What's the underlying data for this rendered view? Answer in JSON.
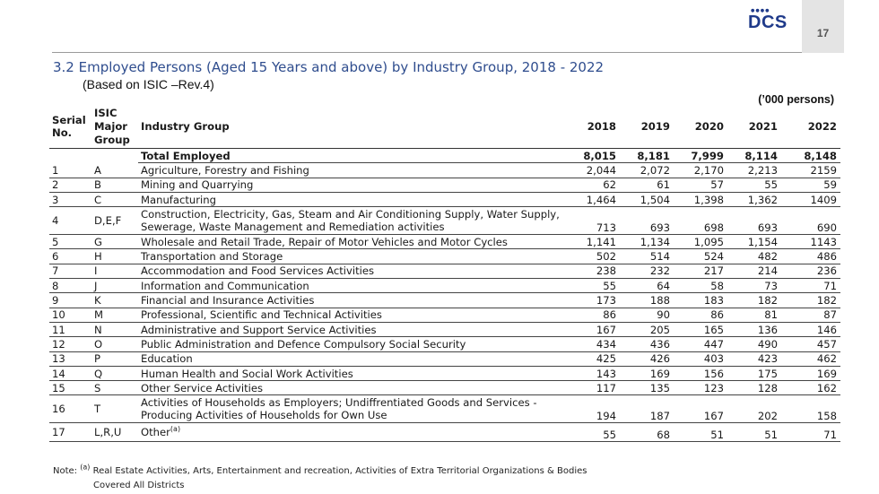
{
  "header": {
    "page_number": "17",
    "logo_text": "DCS"
  },
  "title": "3.2 Employed Persons (Aged 15 Years and above) by Industry Group, 2018 - 2022",
  "subtitle": "(Based on ISIC –Rev.4)",
  "units": "(’000 persons)",
  "table": {
    "headers": {
      "serial": "Serial No.",
      "isic": "ISIC Major Group",
      "industry": "Industry Group",
      "years": [
        "2018",
        "2019",
        "2020",
        "2021",
        "2022"
      ]
    },
    "total": {
      "label": "Total Employed",
      "values": [
        "8,015",
        "8,181",
        "7,999",
        "8,114",
        "8,148"
      ]
    },
    "rows": [
      {
        "serial": "1",
        "isic": "A",
        "industry": "Agriculture, Forestry and Fishing",
        "values": [
          "2,044",
          "2,072",
          "2,170",
          "2,213",
          "2159"
        ]
      },
      {
        "serial": "2",
        "isic": "B",
        "industry": "Mining and Quarrying",
        "values": [
          "62",
          "61",
          "57",
          "55",
          "59"
        ]
      },
      {
        "serial": "3",
        "isic": "C",
        "industry": "Manufacturing",
        "values": [
          "1,464",
          "1,504",
          "1,398",
          "1,362",
          "1409"
        ]
      },
      {
        "serial": "4",
        "isic": "D,E,F",
        "industry": "Construction, Electricity, Gas, Steam and Air Conditioning Supply, Water Supply, Sewerage, Waste Management and Remediation activities",
        "values": [
          "713",
          "693",
          "698",
          "693",
          "690"
        ]
      },
      {
        "serial": "5",
        "isic": "G",
        "industry": "Wholesale and Retail Trade, Repair of Motor Vehicles and Motor Cycles",
        "values": [
          "1,141",
          "1,134",
          "1,095",
          "1,154",
          "1143"
        ]
      },
      {
        "serial": "6",
        "isic": "H",
        "industry": "Transportation and Storage",
        "values": [
          "502",
          "514",
          "524",
          "482",
          "486"
        ]
      },
      {
        "serial": "7",
        "isic": "I",
        "industry": "Accommodation and Food Services Activities",
        "values": [
          "238",
          "232",
          "217",
          "214",
          "236"
        ]
      },
      {
        "serial": "8",
        "isic": "J",
        "industry": "Information and Communication",
        "values": [
          "55",
          "64",
          "58",
          "73",
          "71"
        ]
      },
      {
        "serial": "9",
        "isic": "K",
        "industry": "Financial and Insurance Activities",
        "values": [
          "173",
          "188",
          "183",
          "182",
          "182"
        ]
      },
      {
        "serial": "10",
        "isic": "M",
        "industry": "Professional, Scientific and Technical Activities",
        "values": [
          "86",
          "90",
          "86",
          "81",
          "87"
        ]
      },
      {
        "serial": "11",
        "isic": "N",
        "industry": "Administrative and Support Service Activities",
        "values": [
          "167",
          "205",
          "165",
          "136",
          "146"
        ]
      },
      {
        "serial": "12",
        "isic": "O",
        "industry": "Public Administration and Defence Compulsory Social Security",
        "values": [
          "434",
          "436",
          "447",
          "490",
          "457"
        ]
      },
      {
        "serial": "13",
        "isic": "P",
        "industry": "Education",
        "values": [
          "425",
          "426",
          "403",
          "423",
          "462"
        ]
      },
      {
        "serial": "14",
        "isic": "Q",
        "industry": "Human Health and Social Work Activities",
        "values": [
          "143",
          "169",
          "156",
          "175",
          "169"
        ]
      },
      {
        "serial": "15",
        "isic": "S",
        "industry": "Other Service Activities",
        "values": [
          "117",
          "135",
          "123",
          "128",
          "162"
        ]
      },
      {
        "serial": "16",
        "isic": "T",
        "industry": "Activities of Households as Employers; Undiffrentiated Goods and Services - Producing Activities of Households for Own Use",
        "values": [
          "194",
          "187",
          "167",
          "202",
          "158"
        ]
      },
      {
        "serial": "17",
        "isic": "L,R,U",
        "industry": "Other",
        "industry_sup": "(a)",
        "values": [
          "55",
          "68",
          "51",
          "51",
          "71"
        ]
      }
    ]
  },
  "note": {
    "label": "Note:",
    "marker": "(a)",
    "line1": "Real Estate Activities, Arts, Entertainment and recreation, Activities of Extra Territorial Organizations & Bodies",
    "line2": "Covered All Districts"
  }
}
